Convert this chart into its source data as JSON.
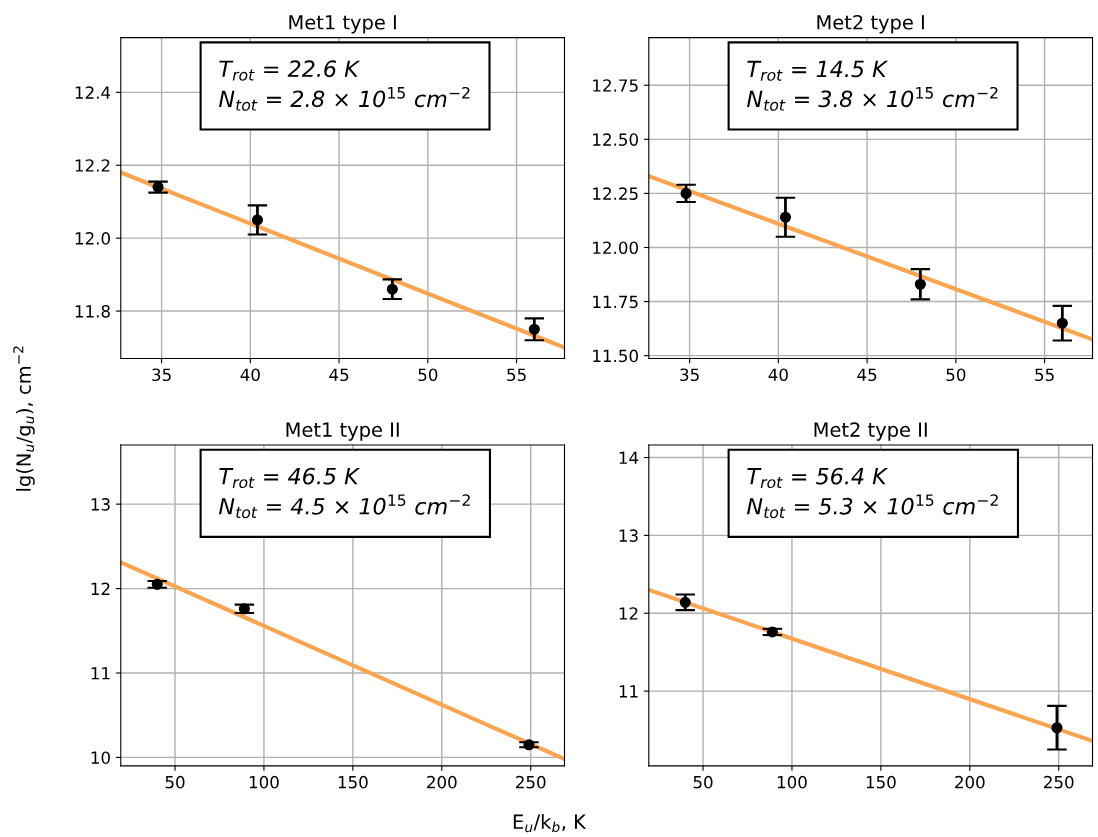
{
  "chart_data": [
    {
      "type": "scatter",
      "title": "Met1 type I",
      "ylabel": "lg(N$_{u}$/g$_{u}$), cm$^{−2}$",
      "marker": "circle",
      "grid": true,
      "xlim": [
        32.7,
        57.7
      ],
      "ylim": [
        11.67,
        12.55
      ],
      "xticks": [
        35,
        40,
        45,
        50,
        55
      ],
      "yticks": [
        11.8,
        {
          "value": 12,
          "label": "12.0"
        },
        12.2,
        12.4
      ],
      "annotations": [
        "T$_{rot}$ = 22.6 K",
        "N$_{tot}$ = 2.8 × 10$^{15}$ cm$^{−2}$"
      ],
      "series": [
        {
          "color": "#000000",
          "x": [
            34.8,
            40.4,
            48,
            56
          ],
          "values": [
            12.14,
            12.05,
            11.86,
            11.75
          ],
          "errors": [
            0.015,
            0.04,
            0.027,
            0.03
          ]
        },
        {
          "type": "line",
          "color": "#fca551",
          "marker": "none",
          "x": [
            32.7,
            57.7
          ],
          "values": [
            12.18,
            11.7
          ]
        }
      ]
    },
    {
      "type": "scatter",
      "title": "Met2 type I",
      "marker": "circle",
      "grid": true,
      "xlim": [
        32.7,
        57.7
      ],
      "ylim": [
        11.487,
        12.97
      ],
      "xticks": [
        35,
        40,
        45,
        50,
        55
      ],
      "yticks": [
        {
          "value": 11.5,
          "label": "11.50"
        },
        11.75,
        {
          "value": 12,
          "label": "12.00"
        },
        12.25,
        {
          "value": 12.5,
          "label": "12.50"
        },
        12.75
      ],
      "annotations": [
        "T$_{rot}$ = 14.5 K",
        "N$_{tot}$ = 3.8 × 10$^{15}$ cm$^{−2}$"
      ],
      "series": [
        {
          "color": "#000000",
          "x": [
            34.8,
            40.4,
            48,
            56
          ],
          "values": [
            12.25,
            12.14,
            11.83,
            11.65
          ],
          "errors": [
            0.04,
            0.09,
            0.07,
            0.08
          ]
        },
        {
          "type": "line",
          "color": "#fca551",
          "marker": "none",
          "x": [
            32.7,
            57.7
          ],
          "values": [
            12.33,
            11.575
          ]
        }
      ]
    },
    {
      "type": "scatter",
      "title": "Met1 type II",
      "marker": "circle",
      "grid": true,
      "xlim": [
        19.5,
        269
      ],
      "ylim": [
        9.9,
        13.7
      ],
      "xticks": [
        50,
        100,
        150,
        200,
        250
      ],
      "yticks": [
        10,
        11,
        12,
        13
      ],
      "annotations": [
        "T$_{rot}$ = 46.5 K",
        "N$_{tot}$ = 4.5 × 10$^{15}$ cm$^{−2}$"
      ],
      "series": [
        {
          "color": "#000000",
          "x": [
            40,
            89,
            249
          ],
          "values": [
            12.05,
            11.76,
            10.15
          ],
          "errors": [
            0.04,
            0.05,
            0.03
          ]
        },
        {
          "type": "line",
          "color": "#fca551",
          "marker": "none",
          "x": [
            19.5,
            269
          ],
          "values": [
            12.31,
            9.98
          ]
        }
      ]
    },
    {
      "type": "scatter",
      "title": "Met2 type II",
      "xlabel": "E$_{u}$/k$_{b}$, K",
      "marker": "circle",
      "grid": true,
      "xlim": [
        19.5,
        269
      ],
      "ylim": [
        10.04,
        14.16
      ],
      "xticks": [
        50,
        100,
        150,
        200,
        250
      ],
      "yticks": [
        11,
        12,
        13,
        14
      ],
      "annotations": [
        "T$_{rot}$ = 56.4 K",
        "N$_{tot}$ = 5.3 × 10$^{15}$ cm$^{−2}$"
      ],
      "series": [
        {
          "color": "#000000",
          "x": [
            40,
            89,
            249
          ],
          "values": [
            12.14,
            11.76,
            10.53
          ],
          "errors": [
            0.1,
            0.04,
            0.28
          ]
        },
        {
          "type": "line",
          "color": "#fca551",
          "marker": "none",
          "x": [
            19.5,
            269
          ],
          "values": [
            12.3,
            10.36
          ]
        }
      ]
    }
  ]
}
